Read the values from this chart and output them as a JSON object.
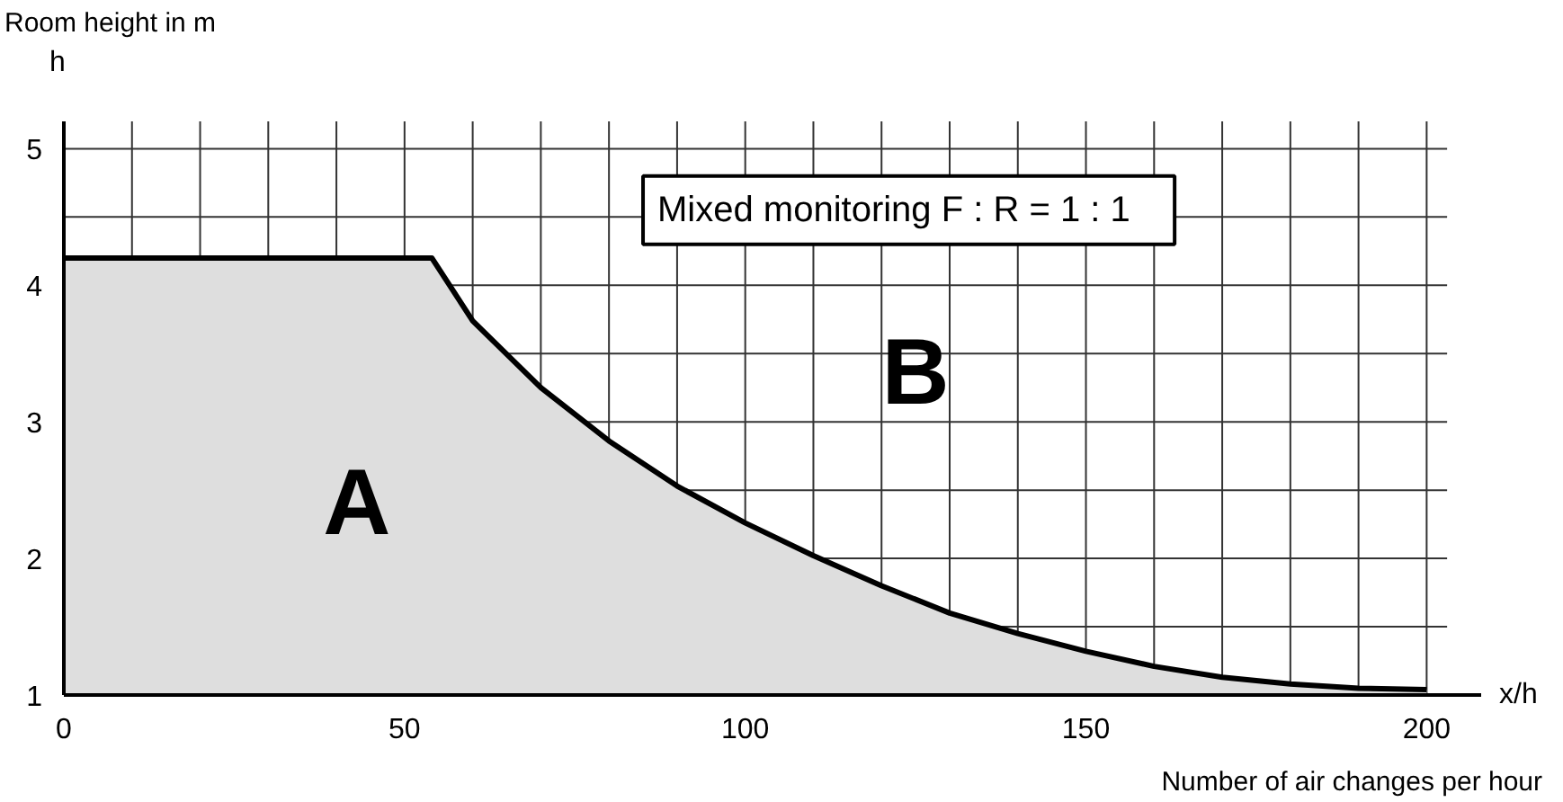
{
  "chart_data": {
    "type": "area",
    "xlabel": "Number of air changes per hour",
    "ylabel": "Room height in m",
    "annotations": [
      "h",
      "x/h",
      "Mixed monitoring    F : R = 1 : 1",
      "A",
      "B"
    ],
    "x": [
      0,
      54,
      60,
      70,
      80,
      90,
      100,
      110,
      120,
      130,
      140,
      150,
      160,
      170,
      180,
      190,
      200
    ],
    "series": [
      {
        "color": "#dedede",
        "values": [
          4.2,
          4.2,
          3.74,
          3.25,
          2.86,
          2.53,
          2.26,
          2.02,
          1.8,
          1.6,
          1.45,
          1.32,
          1.21,
          1.13,
          1.08,
          1.05,
          1.04
        ]
      }
    ],
    "xlim": [
      0,
      208
    ],
    "ylim": [
      1,
      5.2
    ],
    "xticks": [
      0,
      {
        "value": 10,
        "label": null
      },
      {
        "value": 20,
        "label": null
      },
      {
        "value": 30,
        "label": null
      },
      {
        "value": 40,
        "label": null
      },
      50,
      {
        "value": 60,
        "label": null
      },
      {
        "value": 70,
        "label": null
      },
      {
        "value": 80,
        "label": null
      },
      {
        "value": 90,
        "label": null
      },
      100,
      {
        "value": 110,
        "label": null
      },
      {
        "value": 120,
        "label": null
      },
      {
        "value": 130,
        "label": null
      },
      {
        "value": 140,
        "label": null
      },
      150,
      {
        "value": 160,
        "label": null
      },
      {
        "value": 170,
        "label": null
      },
      {
        "value": 180,
        "label": null
      },
      {
        "value": 190,
        "label": null
      },
      200
    ],
    "yticks": [
      1,
      {
        "value": 1.5,
        "label": null
      },
      2,
      {
        "value": 2.5,
        "label": null
      },
      3,
      {
        "value": 3.5,
        "label": null
      },
      4,
      {
        "value": 4.5,
        "label": null
      },
      5
    ],
    "grid": true
  }
}
